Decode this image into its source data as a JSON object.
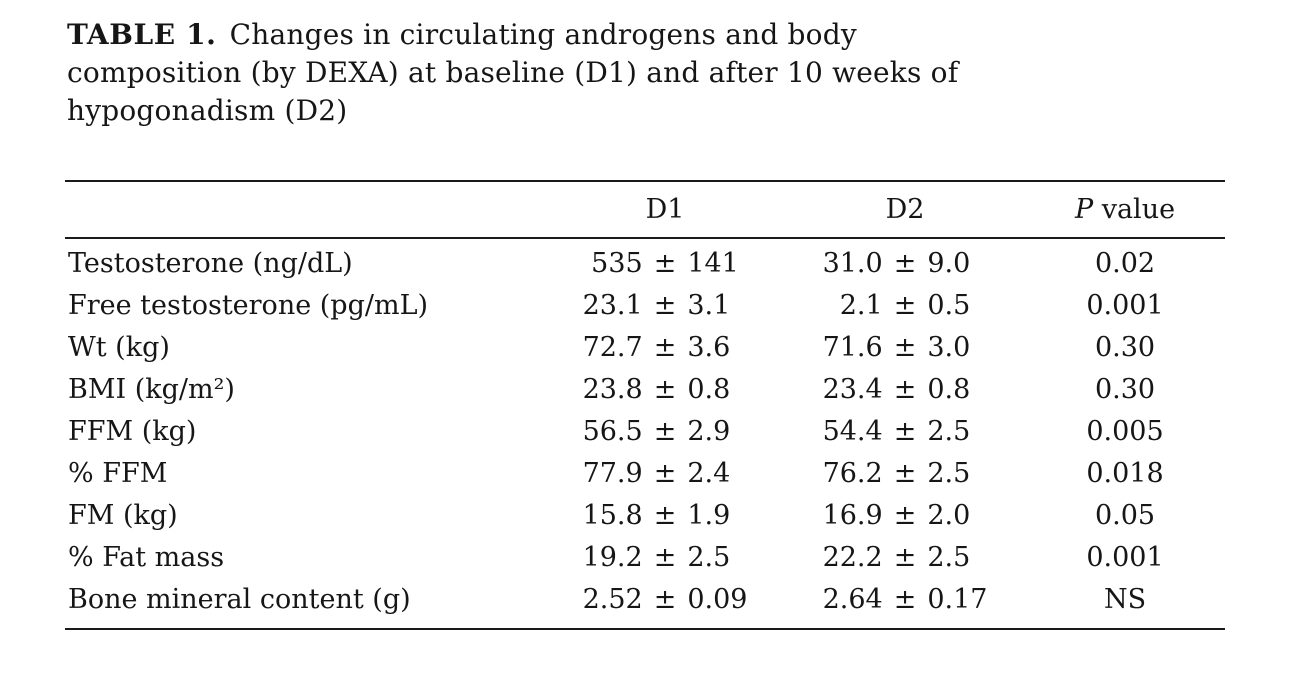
{
  "title": {
    "label": "TABLE 1.",
    "lines": [
      "Changes in circulating androgens and body",
      "composition (by DEXA) at baseline (D1) and after 10 weeks of",
      "hypogonadism (D2)"
    ]
  },
  "table": {
    "pm": "±",
    "header": {
      "d1": "D1",
      "d2": "D2",
      "p_italic": "P",
      "p_rest": "value"
    },
    "rows": [
      {
        "label": "Testosterone (ng/dL)",
        "d1_mean": "535",
        "d1_sd": "141",
        "d2_mean": "31.0",
        "d2_sd": "9.0",
        "p": "0.02"
      },
      {
        "label": "Free testosterone (pg/mL)",
        "d1_mean": "23.1",
        "d1_sd": "3.1",
        "d2_mean": "2.1",
        "d2_sd": "0.5",
        "p": "0.001"
      },
      {
        "label": "Wt (kg)",
        "d1_mean": "72.7",
        "d1_sd": "3.6",
        "d2_mean": "71.6",
        "d2_sd": "3.0",
        "p": "0.30"
      },
      {
        "label": "BMI (kg/m²)",
        "d1_mean": "23.8",
        "d1_sd": "0.8",
        "d2_mean": "23.4",
        "d2_sd": "0.8",
        "p": "0.30"
      },
      {
        "label": "FFM (kg)",
        "d1_mean": "56.5",
        "d1_sd": "2.9",
        "d2_mean": "54.4",
        "d2_sd": "2.5",
        "p": "0.005"
      },
      {
        "label": "% FFM",
        "d1_mean": "77.9",
        "d1_sd": "2.4",
        "d2_mean": "76.2",
        "d2_sd": "2.5",
        "p": "0.018"
      },
      {
        "label": "FM (kg)",
        "d1_mean": "15.8",
        "d1_sd": "1.9",
        "d2_mean": "16.9",
        "d2_sd": "2.0",
        "p": "0.05"
      },
      {
        "label": "% Fat mass",
        "d1_mean": "19.2",
        "d1_sd": "2.5",
        "d2_mean": "22.2",
        "d2_sd": "2.5",
        "p": "0.001"
      },
      {
        "label": "Bone mineral content (g)",
        "d1_mean": "2.52",
        "d1_sd": "0.09",
        "d2_mean": "2.64",
        "d2_sd": "0.17",
        "p": "NS"
      }
    ]
  },
  "chart_data": {
    "type": "table",
    "title": "TABLE 1. Changes in circulating androgens and body composition (by DEXA) at baseline (D1) and after 10 weeks of hypogonadism (D2)",
    "columns": [
      "",
      "D1",
      "D2",
      "P value"
    ],
    "rows": [
      [
        "Testosterone (ng/dL)",
        "535 ± 141",
        "31.0 ± 9.0",
        "0.02"
      ],
      [
        "Free testosterone (pg/mL)",
        "23.1 ± 3.1",
        "2.1 ± 0.5",
        "0.001"
      ],
      [
        "Wt (kg)",
        "72.7 ± 3.6",
        "71.6 ± 3.0",
        "0.30"
      ],
      [
        "BMI (kg/m²)",
        "23.8 ± 0.8",
        "23.4 ± 0.8",
        "0.30"
      ],
      [
        "FFM (kg)",
        "56.5 ± 2.9",
        "54.4 ± 2.5",
        "0.005"
      ],
      [
        "% FFM",
        "77.9 ± 2.4",
        "76.2 ± 2.5",
        "0.018"
      ],
      [
        "FM (kg)",
        "15.8 ± 1.9",
        "16.9 ± 2.0",
        "0.05"
      ],
      [
        "% Fat mass",
        "19.2 ± 2.5",
        "22.2 ± 2.5",
        "0.001"
      ],
      [
        "Bone mineral content (g)",
        "2.52 ± 0.09",
        "2.64 ± 0.17",
        "NS"
      ]
    ]
  },
  "colors": {
    "text": "#161616",
    "rule": "#1a1a1a",
    "background": "#ffffff"
  }
}
